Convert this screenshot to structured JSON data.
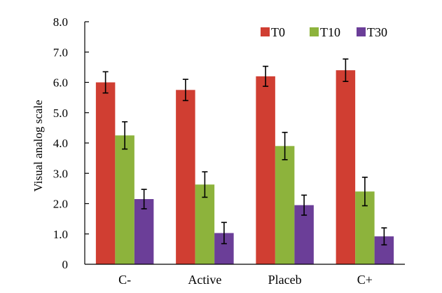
{
  "chart_data": {
    "type": "bar",
    "title": "",
    "xlabel": "",
    "ylabel": "Visual analog scale",
    "categories": [
      "C-",
      "Active",
      "Placeb",
      "C+"
    ],
    "ylim": [
      0,
      8
    ],
    "yticks": [
      "0",
      "1.0",
      "2.0",
      "3.0",
      "4.0",
      "5.0",
      "6.0",
      "7.0",
      "8.0"
    ],
    "ytick_values": [
      0,
      1,
      2,
      3,
      4,
      5,
      6,
      7,
      8
    ],
    "legend_position": "top-right",
    "grid": false,
    "series": [
      {
        "name": "T0",
        "color": "#d03e32",
        "values": [
          6.0,
          5.75,
          6.2,
          6.4
        ],
        "errors": [
          0.35,
          0.35,
          0.33,
          0.37
        ]
      },
      {
        "name": "T10",
        "color": "#8db33c",
        "values": [
          4.25,
          2.63,
          3.9,
          2.4
        ],
        "errors": [
          0.45,
          0.42,
          0.45,
          0.47
        ]
      },
      {
        "name": "T30",
        "color": "#6b3e98",
        "values": [
          2.15,
          1.03,
          1.95,
          0.92
        ],
        "errors": [
          0.32,
          0.35,
          0.33,
          0.28
        ]
      }
    ]
  }
}
